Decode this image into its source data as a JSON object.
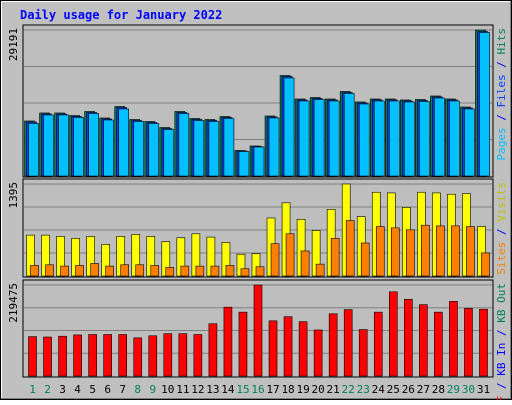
{
  "colors": {
    "background": "#c0c0c0",
    "panel": "#bebebe",
    "grid": "#808080",
    "title": "#0000ff",
    "pages": "#00c0ff",
    "files": "#0040ff",
    "hits": "#00805a",
    "visits": "#ffff00",
    "sites": "#ff8000",
    "kb": "#ff0000",
    "weekend_label": "#00805a"
  },
  "chart_data": {
    "type": "bar",
    "title": "Daily usage for January 2022",
    "categories": [
      "1",
      "2",
      "3",
      "4",
      "5",
      "6",
      "7",
      "8",
      "9",
      "10",
      "11",
      "12",
      "13",
      "14",
      "15",
      "16",
      "17",
      "18",
      "19",
      "20",
      "21",
      "22",
      "23",
      "24",
      "25",
      "26",
      "27",
      "28",
      "29",
      "30",
      "31"
    ],
    "weekend_days": [
      "1",
      "2",
      "8",
      "9",
      "15",
      "16",
      "22",
      "23",
      "29",
      "30"
    ],
    "panels": [
      {
        "id": "hits",
        "max_label": "29191",
        "ylim": [
          0,
          29191
        ],
        "right_label": [
          {
            "text": "Pages",
            "color": "#00c0ff"
          },
          {
            "text": " / ",
            "color": "#0000ff"
          },
          {
            "text": "Files",
            "color": "#0040ff"
          },
          {
            "text": " / ",
            "color": "#0000ff"
          },
          {
            "text": "Hits",
            "color": "#00805a"
          }
        ],
        "series": [
          {
            "name": "Hits",
            "color": "#00805a",
            "values": [
              11000,
              12600,
              12600,
              12100,
              12900,
              11600,
              13900,
              11300,
              10900,
              9700,
              12900,
              11500,
              11300,
              11900,
              5100,
              6000,
              12000,
              20100,
              15400,
              15700,
              15400,
              16900,
              14800,
              15400,
              15400,
              15200,
              15300,
              16000,
              15400,
              13800,
              29191
            ]
          },
          {
            "name": "Files",
            "color": "#0040ff",
            "values": [
              10800,
              12400,
              12400,
              11900,
              12700,
              11400,
              13700,
              11100,
              10700,
              9500,
              12700,
              11300,
              11100,
              11700,
              5000,
              5900,
              11800,
              19900,
              15200,
              15500,
              15200,
              16700,
              14600,
              15200,
              15200,
              15000,
              15100,
              15800,
              15200,
              13600,
              28900
            ]
          },
          {
            "name": "Pages",
            "color": "#00c0ff",
            "values": [
              10500,
              12200,
              12200,
              11700,
              12500,
              11200,
              13400,
              10900,
              10500,
              9300,
              12500,
              11100,
              10900,
              11500,
              4900,
              5800,
              11600,
              19600,
              15000,
              15300,
              15000,
              16500,
              14400,
              15000,
              15000,
              14800,
              14900,
              15600,
              15000,
              13400,
              28700
            ]
          }
        ]
      },
      {
        "id": "visits",
        "max_label": "1395",
        "ylim": [
          0,
          1395
        ],
        "right_label": [
          {
            "text": "Sites",
            "color": "#ff8000"
          },
          {
            "text": " / ",
            "color": "#0000ff"
          },
          {
            "text": "Visits",
            "color": "#c0c000"
          }
        ],
        "series": [
          {
            "name": "Visits",
            "color": "#ffff00",
            "values": [
              620,
              620,
              600,
              570,
              600,
              480,
              600,
              630,
              600,
              520,
              580,
              640,
              590,
              510,
              330,
              340,
              880,
              1110,
              860,
              690,
              1010,
              1395,
              900,
              1270,
              1260,
              1040,
              1270,
              1260,
              1240,
              1250,
              750
            ]
          },
          {
            "name": "Sites",
            "color": "#ff8000",
            "values": [
              160,
              170,
              150,
              160,
              190,
              150,
              170,
              170,
              160,
              130,
              150,
              150,
              150,
              160,
              110,
              140,
              490,
              640,
              380,
              180,
              570,
              840,
              500,
              750,
              730,
              700,
              770,
              760,
              760,
              750,
              350
            ]
          }
        ]
      },
      {
        "id": "kb",
        "max_label": "219475",
        "ylim": [
          0,
          219475
        ],
        "right_label": [
          {
            "text": "KB F",
            "color": "#ff0000"
          },
          {
            "text": " / ",
            "color": "#0000ff"
          },
          {
            "text": "KB In",
            "color": "#0000ff"
          },
          {
            "text": " / ",
            "color": "#0000ff"
          },
          {
            "text": "KB Out",
            "color": "#00805a"
          }
        ],
        "series": [
          {
            "name": "KB F",
            "color": "#ff0000",
            "values": [
              95000,
              94000,
              96000,
              99000,
              100000,
              100000,
              100000,
              92000,
              97000,
              102000,
              102000,
              100000,
              126000,
              166000,
              154000,
              219475,
              133000,
              143000,
              131000,
              111000,
              150000,
              160000,
              112000,
              154000,
              203000,
              185000,
              172000,
              154000,
              180000,
              163000,
              161000
            ]
          }
        ]
      }
    ]
  }
}
